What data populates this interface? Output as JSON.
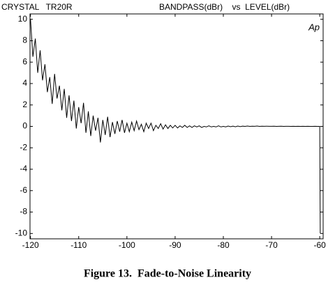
{
  "chart_data": {
    "type": "line",
    "title": "CRYSTAL   TR20R",
    "axis_title": "BANDPASS(dBr)    vs  LEVEL(dBr)",
    "annotation": "Ap",
    "caption": "Figure 13.  Fade-to-Noise Linearity",
    "color": "#000000",
    "x": [
      -120,
      -119.5,
      -119,
      -118.5,
      -118,
      -117.5,
      -117,
      -116.5,
      -116,
      -115.5,
      -115,
      -114.5,
      -114,
      -113.5,
      -113,
      -112.5,
      -112,
      -111.5,
      -111,
      -110.5,
      -110,
      -109.5,
      -109,
      -108.5,
      -108,
      -107.5,
      -107,
      -106.5,
      -106,
      -105.5,
      -105,
      -104.5,
      -104,
      -103.5,
      -103,
      -102.5,
      -102,
      -101.5,
      -101,
      -100.5,
      -100,
      -99.5,
      -99,
      -98.5,
      -98,
      -97.5,
      -97,
      -96.5,
      -96,
      -95.5,
      -95,
      -94.5,
      -94,
      -93.5,
      -93,
      -92.5,
      -92,
      -91.5,
      -91,
      -90.5,
      -90,
      -89.5,
      -89,
      -88.5,
      -88,
      -87.5,
      -87,
      -86.5,
      -86,
      -85.5,
      -85,
      -84.5,
      -84,
      -83.5,
      -83,
      -82.5,
      -82,
      -81.5,
      -81,
      -80.5,
      -80,
      -79.5,
      -79,
      -78.5,
      -78,
      -77.5,
      -77,
      -76.5,
      -76,
      -75.5,
      -75,
      -74.5,
      -74,
      -73.5,
      -73,
      -72.5,
      -72,
      -71.5,
      -71,
      -70.5,
      -70,
      -69.5,
      -69,
      -68.5,
      -68,
      -67.5,
      -67,
      -66.5,
      -66,
      -65.5,
      -65,
      -64.5,
      -64,
      -63.5,
      -63,
      -62.5,
      -62,
      -61.5,
      -61,
      -60.5,
      -60,
      -59.9
    ],
    "values": [
      10,
      6.5,
      8.2,
      5.0,
      7.1,
      4.3,
      5.8,
      3.2,
      4.6,
      2.1,
      4.9,
      2.6,
      3.8,
      1.5,
      3.5,
      0.8,
      2.9,
      0.5,
      2.4,
      -0.2,
      1.8,
      0.3,
      2.2,
      -0.6,
      1.4,
      -0.9,
      1.0,
      -0.4,
      0.8,
      -1.5,
      0.6,
      -0.8,
      0.9,
      -1.0,
      0.4,
      -0.7,
      0.5,
      -0.5,
      0.6,
      -0.6,
      0.3,
      -0.5,
      0.4,
      -0.4,
      0.5,
      -0.3,
      0.2,
      -0.5,
      0.3,
      -0.2,
      0.3,
      -0.4,
      0.1,
      -0.2,
      0.25,
      -0.25,
      0.15,
      -0.2,
      0.1,
      -0.15,
      0.1,
      -0.15,
      0.05,
      -0.1,
      0.1,
      -0.1,
      0.05,
      -0.1,
      0.05,
      -0.05,
      0.05,
      -0.1,
      0,
      -0.05,
      0.05,
      -0.05,
      0,
      -0.05,
      0.05,
      -0.05,
      0,
      -0.05,
      0.03,
      -0.03,
      0.02,
      -0.04,
      0.03,
      -0.02,
      0.02,
      0,
      0.03,
      0,
      0.02,
      0.01,
      0.03,
      0,
      0.02,
      0.01,
      0.02,
      0.01,
      0.01,
      0.02,
      0,
      0.01,
      0.02,
      0,
      0.01,
      0.01,
      0,
      0.01,
      0,
      0.01,
      0,
      0.01,
      0,
      0.01,
      0,
      0,
      0.01,
      0,
      0,
      -10
    ],
    "xlim": [
      -120.1,
      -59.3
    ],
    "ylim": [
      -10.5,
      10.5
    ],
    "xticks": [
      -120,
      -110,
      -100,
      -90,
      -80,
      -70,
      -60
    ],
    "yticks": [
      10,
      8,
      6,
      4,
      2,
      0,
      -2,
      -4,
      -6,
      -8,
      -10
    ]
  }
}
